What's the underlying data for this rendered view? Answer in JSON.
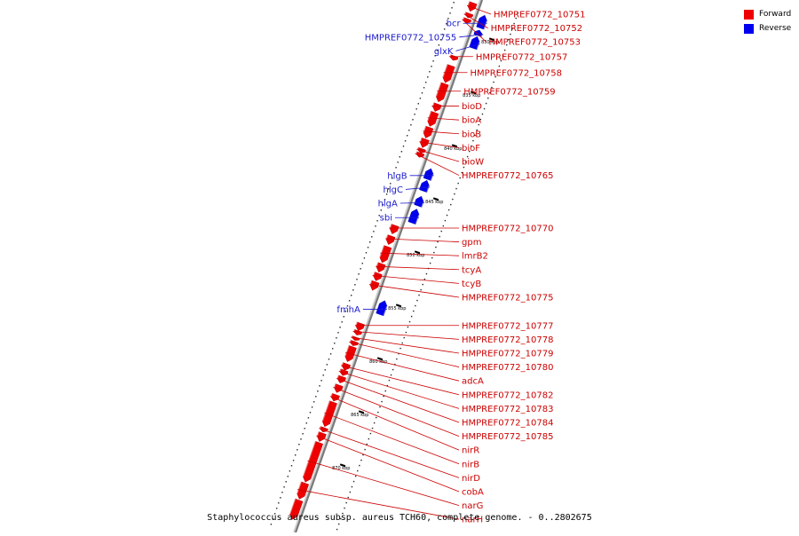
{
  "legend": {
    "forward_label": "Forward",
    "reverse_label": "Reverse",
    "forward_color": "#ee0000",
    "reverse_color": "#0000ee"
  },
  "caption": "Staphylococcus aureus subsp. aureus TCH60, complete genome. - 0..2802675",
  "axis": {
    "unit": "kbp",
    "ticks": [
      {
        "value": 830,
        "label": "830 kbp"
      },
      {
        "value": 835,
        "label": "835 kbp"
      },
      {
        "value": 840,
        "label": "840 kbp"
      },
      {
        "value": 845,
        "label": "845 kbp"
      },
      {
        "value": 850,
        "label": "850 kbp"
      },
      {
        "value": 855,
        "label": "855 kbp"
      },
      {
        "value": 860,
        "label": "860 kbp"
      },
      {
        "value": 865,
        "label": "865 kbp"
      },
      {
        "value": 870,
        "label": "870 kbp"
      }
    ]
  },
  "genes_forward": [
    {
      "label": "HMPREF0772_10751",
      "start": 827.5,
      "end": 828.3
    },
    {
      "label": "HMPREF0772_10752",
      "start": 828.5,
      "end": 828.9
    },
    {
      "label": "HMPREF0772_10753",
      "start": 829.0,
      "end": 829.4
    },
    {
      "label": "HMPREF0772_10757",
      "start": 832.5,
      "end": 832.9
    },
    {
      "label": "HMPREF0772_10758",
      "start": 833.4,
      "end": 835.0
    },
    {
      "label": "HMPREF0772_10759",
      "start": 835.1,
      "end": 836.8
    },
    {
      "label": "bioD",
      "start": 837.0,
      "end": 837.7
    },
    {
      "label": "bioA",
      "start": 837.8,
      "end": 839.1
    },
    {
      "label": "bioB",
      "start": 839.2,
      "end": 840.2
    },
    {
      "label": "bioF",
      "start": 840.3,
      "end": 841.1
    },
    {
      "label": "bioW",
      "start": 841.2,
      "end": 841.6
    },
    {
      "label": "HMPREF0772_10765",
      "start": 841.6,
      "end": 842.0
    },
    {
      "label": "HMPREF0772_10770",
      "start": 848.4,
      "end": 849.2
    },
    {
      "label": "gpm",
      "start": 849.4,
      "end": 850.2
    },
    {
      "label": "lmrB2",
      "start": 850.4,
      "end": 851.9
    },
    {
      "label": "tcyA",
      "start": 852.0,
      "end": 852.8
    },
    {
      "label": "tcyB",
      "start": 852.9,
      "end": 853.6
    },
    {
      "label": "HMPREF0772_10775",
      "start": 853.7,
      "end": 854.5
    },
    {
      "label": "HMPREF0772_10777",
      "start": 857.6,
      "end": 858.3
    },
    {
      "label": "HMPREF0772_10778",
      "start": 858.3,
      "end": 858.7
    },
    {
      "label": "HMPREF0772_10779",
      "start": 858.9,
      "end": 859.2
    },
    {
      "label": "HMPREF0772_10780",
      "start": 859.3,
      "end": 859.7
    },
    {
      "label": "adcA",
      "start": 859.8,
      "end": 861.2
    },
    {
      "label": "HMPREF0772_10782",
      "start": 861.4,
      "end": 862.0
    },
    {
      "label": "HMPREF0772_10783",
      "start": 862.0,
      "end": 862.5
    },
    {
      "label": "HMPREF0772_10784",
      "start": 862.6,
      "end": 863.2
    },
    {
      "label": "HMPREF0772_10785",
      "start": 863.4,
      "end": 864.1
    },
    {
      "label": "nirR",
      "start": 864.3,
      "end": 864.9
    },
    {
      "label": "nirB",
      "start": 865.0,
      "end": 867.3
    },
    {
      "label": "nirD",
      "start": 867.4,
      "end": 867.8
    },
    {
      "label": "cobA",
      "start": 867.9,
      "end": 868.7
    },
    {
      "label": "narG",
      "start": 868.8,
      "end": 872.5
    },
    {
      "label": "narH",
      "start": 872.6,
      "end": 874.1
    },
    {
      "label": "",
      "start": 874.2,
      "end": 876.0
    }
  ],
  "genes_reverse": [
    {
      "label": "bcr",
      "start": 828.2,
      "end": 829.4
    },
    {
      "label": "HMPREF0772_10755",
      "start": 829.6,
      "end": 830.1
    },
    {
      "label": "glxK",
      "start": 830.2,
      "end": 831.3
    },
    {
      "label": "hlgB",
      "start": 842.6,
      "end": 843.6
    },
    {
      "label": "hlgC",
      "start": 843.7,
      "end": 844.7
    },
    {
      "label": "hlgA",
      "start": 845.2,
      "end": 846.1
    },
    {
      "label": "sbi",
      "start": 846.4,
      "end": 847.7
    },
    {
      "label": "fmhA",
      "start": 855.0,
      "end": 856.3
    }
  ]
}
